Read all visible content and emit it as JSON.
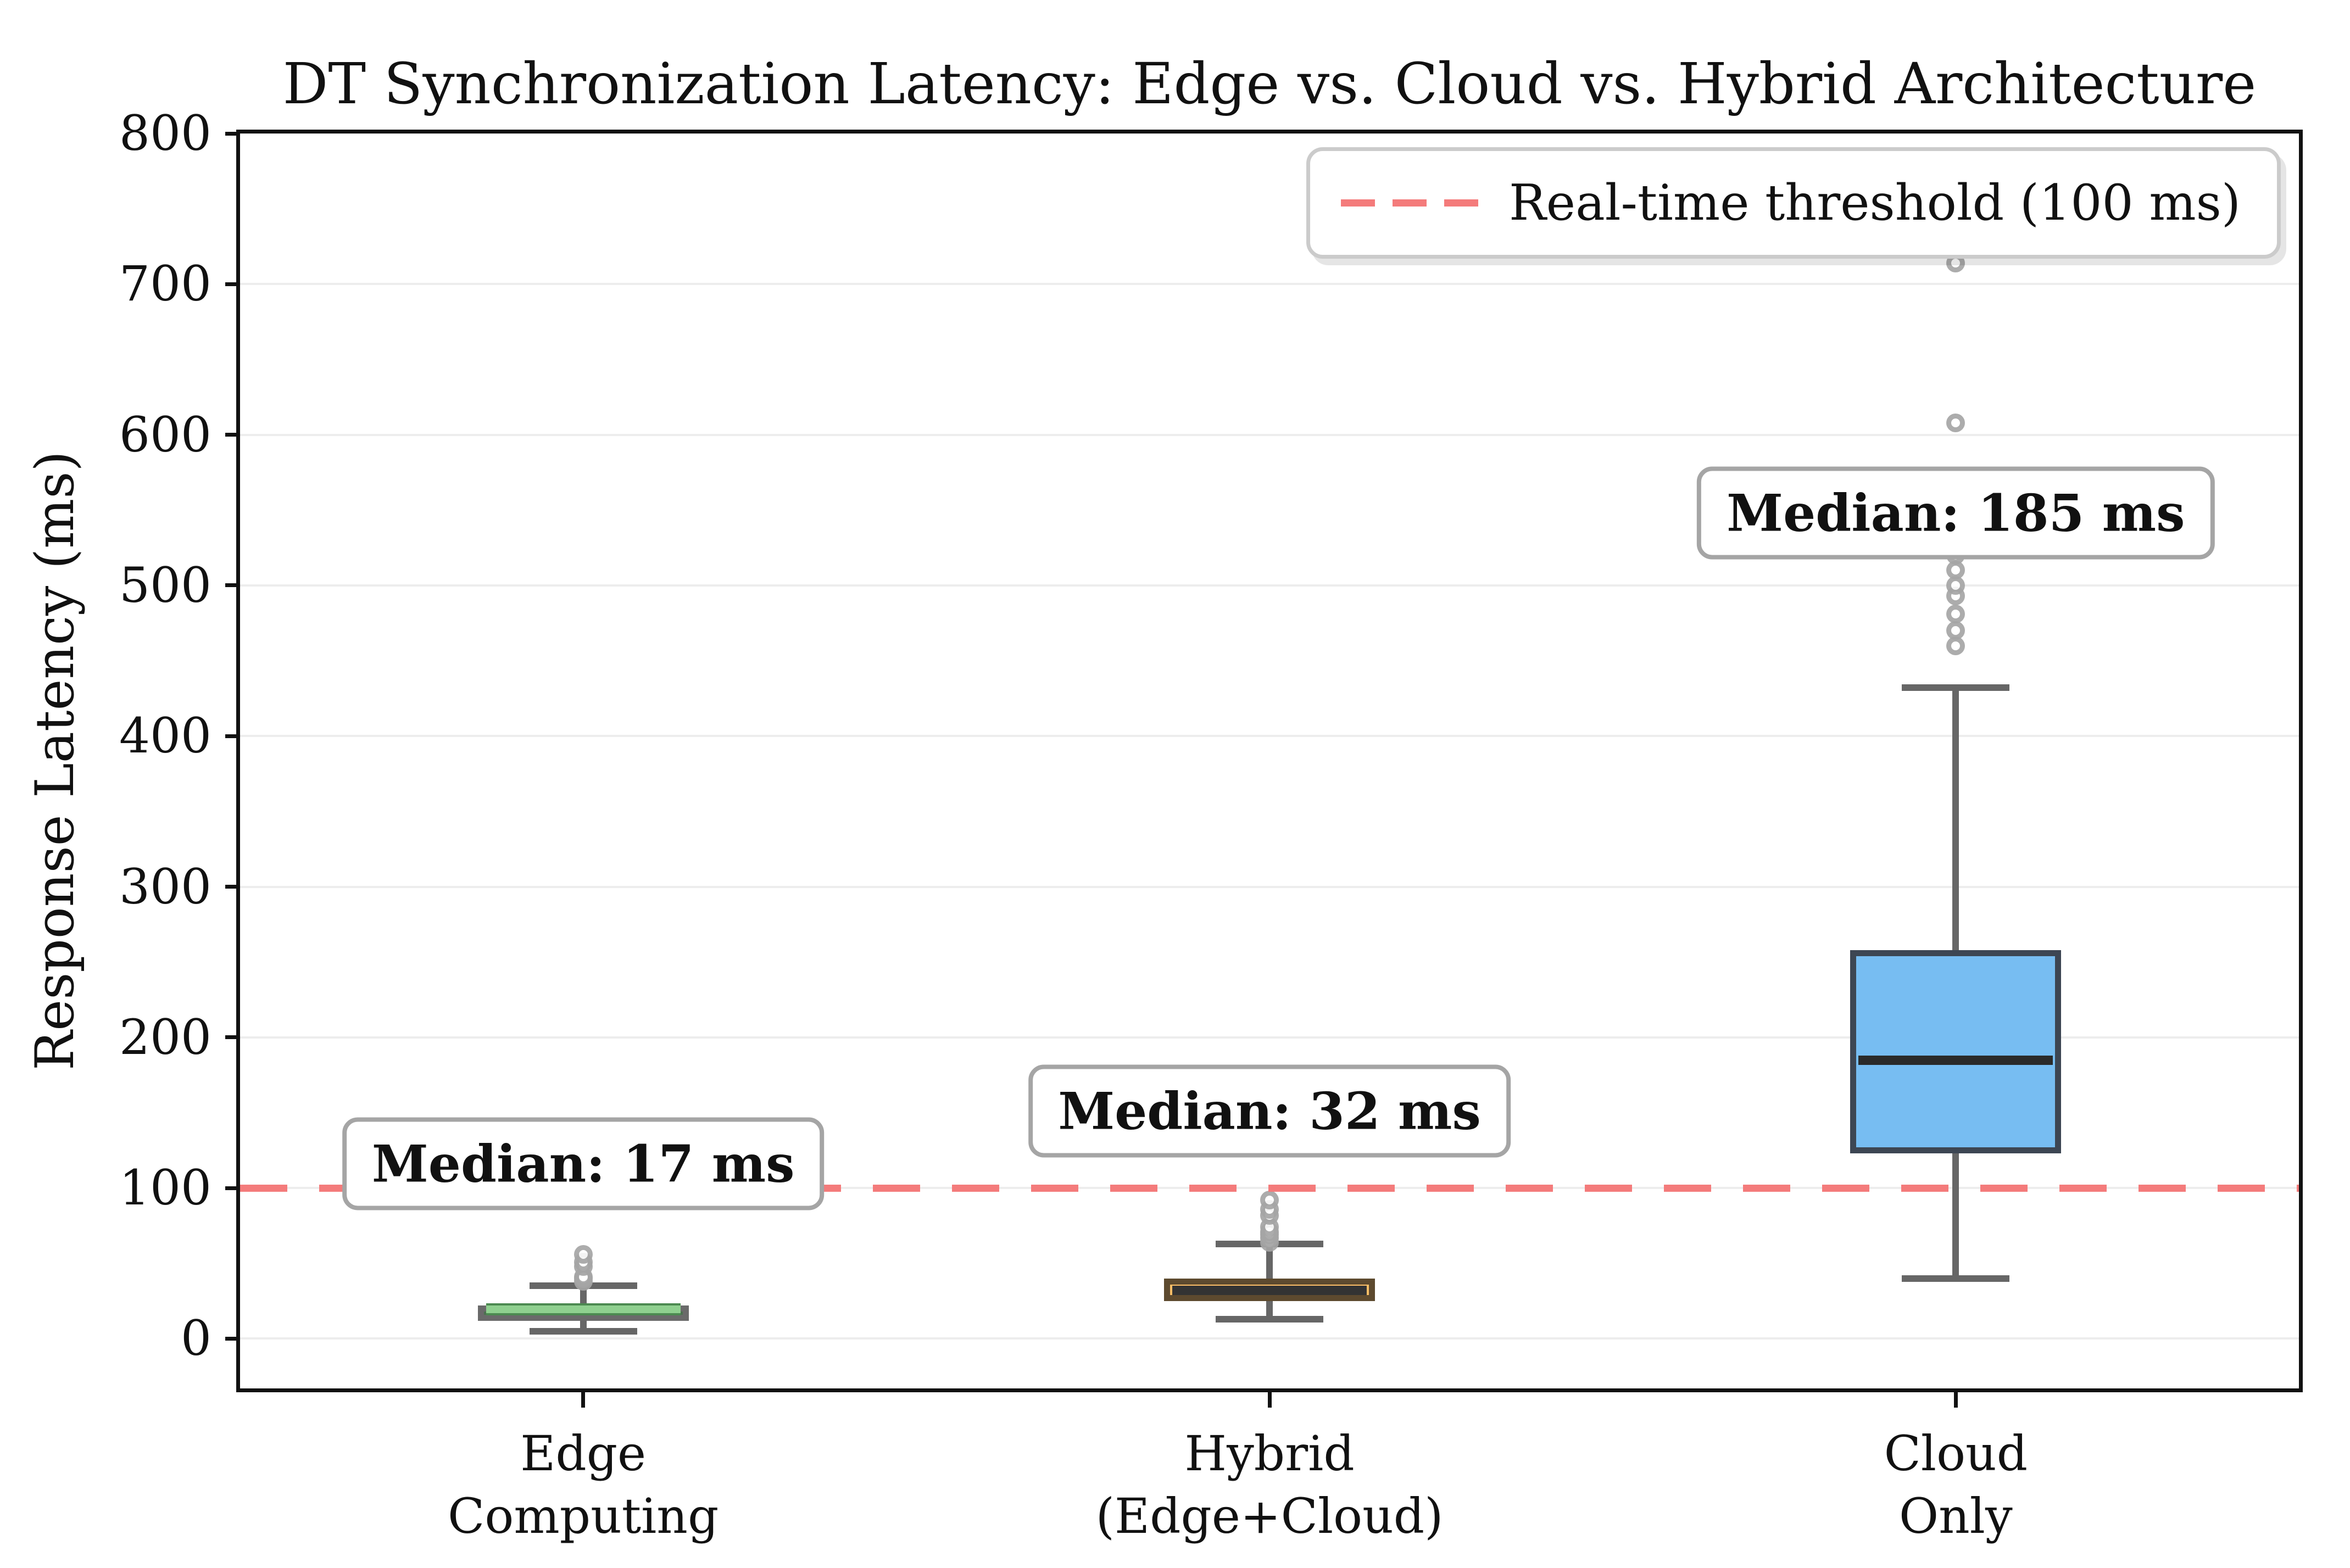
{
  "figure": {
    "background": "#ffffff"
  },
  "chart_data": {
    "type": "boxplot",
    "title": "DT Synchronization Latency: Edge vs. Cloud vs. Hybrid Architecture",
    "xlabel": "",
    "ylabel": "Response Latency (ms)",
    "ylim": [
      -33,
      800
    ],
    "yticks": [
      0,
      100,
      200,
      300,
      400,
      500,
      600,
      700,
      800
    ],
    "grid": "horizontal-light",
    "grid_color": "#ededed",
    "spine_color": "#111111",
    "whisker_color": "#666666",
    "flier_style": {
      "shape": "open-circle",
      "edge": "rgba(70,70,70,0.45)",
      "fill": "rgba(255,255,255,0.85)"
    },
    "threshold_line": {
      "y": 100,
      "style": "dashed",
      "color": "#f47b7b",
      "label": "Real-time threshold (100 ms)"
    },
    "legend": {
      "position": "upper-right",
      "label": "Real-time threshold (100 ms)",
      "line_style": "dashed",
      "line_color": "#f47b7b"
    },
    "categories": [
      [
        "Edge",
        "Computing"
      ],
      [
        "Hybrid",
        "(Edge+Cloud)"
      ],
      [
        "Cloud",
        "Only"
      ]
    ],
    "series": [
      {
        "name": "Edge Computing",
        "whislo": 5,
        "q1": 12,
        "med": 17,
        "med_line": 19.5,
        "q3": 22,
        "whishi": 35,
        "fliers": [
          38,
          40,
          41,
          48,
          51,
          56
        ],
        "box_fill": "#333333",
        "box_edge": "#6a6a6a",
        "box_edge_inner": "#4c7050",
        "median_color": "#8fd08f",
        "median_edge": "#4c8a51",
        "annotation": {
          "text": "Median: 17 ms",
          "y": 116
        }
      },
      {
        "name": "Hybrid (Edge+Cloud)",
        "whislo": 13,
        "q1": 25,
        "med": 32,
        "med_line": 32,
        "q3": 40,
        "whishi": 63,
        "fliers": [
          64,
          67,
          69,
          71,
          74,
          82,
          86,
          92,
          131
        ],
        "box_fill": "#fcbe67",
        "box_edge": "#5d4a2f",
        "box_edge_inner": "",
        "median_color": "#333333",
        "median_edge": "",
        "annotation": {
          "text": "Median: 32 ms",
          "y": 151
        }
      },
      {
        "name": "Cloud Only",
        "whislo": 40,
        "q1": 123,
        "med": 185,
        "med_line": 185,
        "q3": 258,
        "whishi": 432,
        "fliers": [
          460,
          470,
          481,
          493,
          500,
          510,
          520,
          528,
          608,
          714
        ],
        "box_fill": "#77bdf2",
        "box_edge": "#3d4653",
        "box_edge_inner": "",
        "median_color": "#2a2a2a",
        "median_edge": "",
        "annotation": {
          "text": "Median: 185 ms",
          "y": 548
        }
      }
    ]
  }
}
